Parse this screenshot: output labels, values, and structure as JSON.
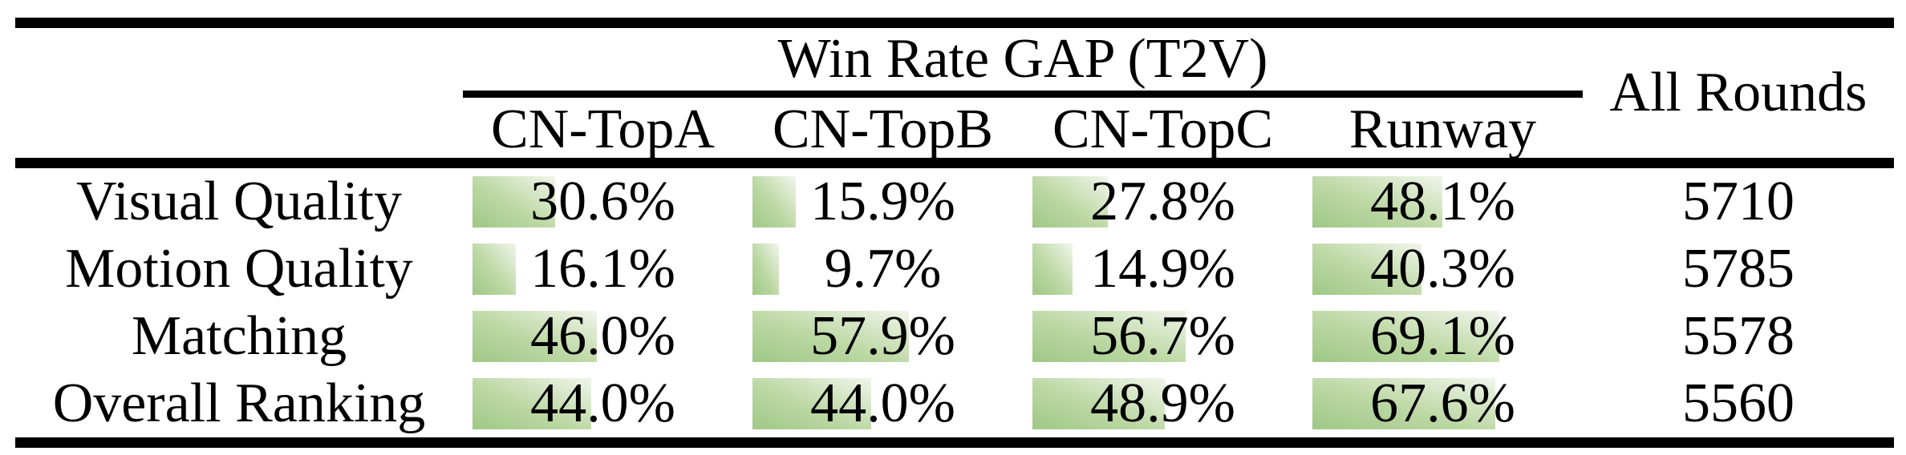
{
  "table": {
    "title": "Win Rate GAP (T2V)",
    "all_rounds_header": "All Rounds",
    "columns": [
      "CN-TopA",
      "CN-TopB",
      "CN-TopC",
      "Runway"
    ],
    "rows": [
      {
        "label": "Visual Quality",
        "cells": [
          {
            "pct": 30.6,
            "text": "30.6%"
          },
          {
            "pct": 15.9,
            "text": "15.9%"
          },
          {
            "pct": 27.8,
            "text": "27.8%"
          },
          {
            "pct": 48.1,
            "text": "48.1%"
          }
        ],
        "rounds": "5710"
      },
      {
        "label": "Motion Quality",
        "cells": [
          {
            "pct": 16.1,
            "text": "16.1%"
          },
          {
            "pct": 9.7,
            "text": "9.7%"
          },
          {
            "pct": 14.9,
            "text": "14.9%"
          },
          {
            "pct": 40.3,
            "text": "40.3%"
          }
        ],
        "rounds": "5785"
      },
      {
        "label": "Matching",
        "cells": [
          {
            "pct": 46.0,
            "text": "46.0%"
          },
          {
            "pct": 57.9,
            "text": "57.9%"
          },
          {
            "pct": 56.7,
            "text": "56.7%"
          },
          {
            "pct": 69.1,
            "text": "69.1%"
          }
        ],
        "rounds": "5578"
      },
      {
        "label": "Overall Ranking",
        "cells": [
          {
            "pct": 44.0,
            "text": "44.0%"
          },
          {
            "pct": 44.0,
            "text": "44.0%"
          },
          {
            "pct": 48.9,
            "text": "48.9%"
          },
          {
            "pct": 67.6,
            "text": "67.6%"
          }
        ],
        "rounds": "5560"
      }
    ],
    "colors": {
      "rule": "#000000",
      "bar_gradient_start": "#9fc886",
      "bar_gradient_end": "#f1f5eb"
    }
  }
}
